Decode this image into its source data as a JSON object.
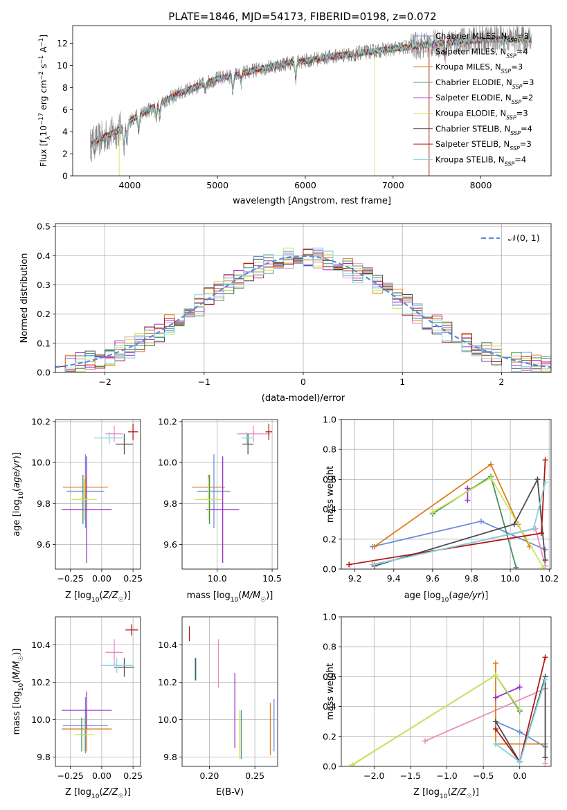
{
  "figure": {
    "title": "PLATE=1846, MJD=54173, FIBERID=0198, z=0.072"
  },
  "colors": {
    "Chabrier MILES": "#6a8edc",
    "Salpeter MILES": "#e58fc0",
    "Kroupa MILES": "#e07b1c",
    "Chabrier ELODIE": "#4a8f5f",
    "Salpeter ELODIE": "#9b2fc8",
    "Kroupa ELODIE": "#c8e85a",
    "Chabrier STELIB": "#4d4d4d",
    "Salpeter STELIB": "#b01818",
    "Kroupa STELIB": "#7fd6df",
    "data": "#808080",
    "normal": "#5b8ad6"
  },
  "chart_data": [
    {
      "id": "spectrum",
      "type": "line",
      "xlabel": "wavelength [Angstrom, rest frame]",
      "ylabel": "Flux [f_λ10^-17 erg cm^-2 s^-1 A^-1]",
      "xlim": [
        3350,
        8800
      ],
      "ylim": [
        0,
        13.6
      ],
      "xticks": [
        4000,
        5000,
        6000,
        7000,
        8000
      ],
      "yticks": [
        0,
        2,
        4,
        6,
        8,
        10,
        12
      ],
      "grid": false,
      "legend_position": "lower right",
      "legend": [
        {
          "model": "Chabrier MILES",
          "nssp": "3"
        },
        {
          "model": "Salpeter MILES",
          "nssp": "4"
        },
        {
          "model": "Kroupa MILES",
          "nssp": "3"
        },
        {
          "model": "Chabrier ELODIE",
          "nssp": "3"
        },
        {
          "model": "Salpeter ELODIE",
          "nssp": "2"
        },
        {
          "model": "Kroupa ELODIE",
          "nssp": "3"
        },
        {
          "model": "Chabrier STELIB",
          "nssp": "4"
        },
        {
          "model": "Salpeter STELIB",
          "nssp": "3"
        },
        {
          "model": "Kroupa STELIB",
          "nssp": "4"
        }
      ],
      "continuum": {
        "x": [
          3550,
          3700,
          3850,
          4000,
          4200,
          4400,
          4600,
          4800,
          5000,
          5200,
          5500,
          5800,
          6000,
          6300,
          6600,
          7000,
          7400,
          7800,
          8200,
          8600
        ],
        "y": [
          2.8,
          3.5,
          4.0,
          5.0,
          5.9,
          6.8,
          7.6,
          8.2,
          8.8,
          9.1,
          9.7,
          10.2,
          10.4,
          10.8,
          11.1,
          11.5,
          11.9,
          12.2,
          12.4,
          12.3
        ]
      }
    },
    {
      "id": "residuals",
      "type": "step",
      "xlabel": "(data-model)/error",
      "ylabel": "Normed distribution",
      "xlim": [
        -2.5,
        2.5
      ],
      "ylim": [
        0,
        0.51
      ],
      "xticks": [
        -2,
        -1,
        0,
        1,
        2
      ],
      "yticks": [
        0.0,
        0.1,
        0.2,
        0.3,
        0.4,
        0.5
      ],
      "grid": true,
      "legend_position": "upper right",
      "legend": "𝒩(0, 1)",
      "bin_width": 0.1
    },
    {
      "id": "age-vs-Z",
      "type": "errorbar",
      "xlabel": "Z [log10(Z/Z☉)]",
      "ylabel": "age [log10(age/yr)]",
      "xlim": [
        -0.37,
        0.31
      ],
      "ylim": [
        9.48,
        10.21
      ],
      "xticks": [
        -0.25,
        0.0,
        0.25
      ],
      "yticks": [
        9.6,
        9.8,
        10.0,
        10.2
      ],
      "grid": true,
      "points": [
        {
          "m": "Chabrier MILES",
          "x": -0.13,
          "xe": 0.15,
          "y": 9.86,
          "ye": 0.18
        },
        {
          "m": "Salpeter MILES",
          "x": 0.1,
          "xe": 0.07,
          "y": 10.14,
          "ye": 0.04
        },
        {
          "m": "Kroupa MILES",
          "x": -0.13,
          "xe": 0.18,
          "y": 9.88,
          "ye": 0.06
        },
        {
          "m": "Chabrier ELODIE",
          "x": -0.15,
          "xe": 0.04,
          "y": 9.82,
          "ye": 0.12
        },
        {
          "m": "Salpeter ELODIE",
          "x": -0.12,
          "xe": 0.2,
          "y": 9.77,
          "ye": 0.26
        },
        {
          "m": "Kroupa ELODIE",
          "x": -0.14,
          "xe": 0.1,
          "y": 9.82,
          "ye": 0.1
        },
        {
          "m": "Chabrier STELIB",
          "x": 0.18,
          "xe": 0.07,
          "y": 10.09,
          "ye": 0.05
        },
        {
          "m": "Salpeter STELIB",
          "x": 0.25,
          "xe": 0.04,
          "y": 10.15,
          "ye": 0.04
        },
        {
          "m": "Kroupa STELIB",
          "x": 0.06,
          "xe": 0.12,
          "y": 10.12,
          "ye": 0.03
        }
      ]
    },
    {
      "id": "age-vs-mass",
      "type": "errorbar",
      "xlabel": "mass [log10(M/M☉)]",
      "ylabel": "",
      "xlim": [
        9.68,
        10.55
      ],
      "ylim": [
        9.48,
        10.21
      ],
      "xticks": [
        10.0,
        10.5
      ],
      "yticks": [
        9.6,
        9.8,
        10.0,
        10.2
      ],
      "grid": true,
      "points": [
        {
          "m": "Chabrier MILES",
          "x": 9.97,
          "xe": 0.15,
          "y": 9.86,
          "ye": 0.18
        },
        {
          "m": "Salpeter MILES",
          "x": 10.33,
          "xe": 0.15,
          "y": 10.14,
          "ye": 0.04
        },
        {
          "m": "Kroupa MILES",
          "x": 9.92,
          "xe": 0.15,
          "y": 9.88,
          "ye": 0.06
        },
        {
          "m": "Chabrier ELODIE",
          "x": 9.93,
          "xe": 0.05,
          "y": 9.82,
          "ye": 0.12
        },
        {
          "m": "Salpeter ELODIE",
          "x": 10.05,
          "xe": 0.15,
          "y": 9.77,
          "ye": 0.26
        },
        {
          "m": "Kroupa ELODIE",
          "x": 9.92,
          "xe": 0.12,
          "y": 9.82,
          "ye": 0.1
        },
        {
          "m": "Chabrier STELIB",
          "x": 10.28,
          "xe": 0.05,
          "y": 10.09,
          "ye": 0.05
        },
        {
          "m": "Salpeter STELIB",
          "x": 10.47,
          "xe": 0.03,
          "y": 10.15,
          "ye": 0.04
        },
        {
          "m": "Kroupa STELIB",
          "x": 10.27,
          "xe": 0.05,
          "y": 10.12,
          "ye": 0.03
        }
      ]
    },
    {
      "id": "weight-vs-age",
      "type": "line",
      "xlabel": "age [log10(age/yr)]",
      "ylabel": "mass weight",
      "xlim": [
        9.13,
        10.21
      ],
      "ylim": [
        0,
        1
      ],
      "xticks": [
        9.2,
        9.4,
        9.6,
        9.8,
        10.0,
        10.2
      ],
      "yticks": [
        0.0,
        0.2,
        0.4,
        0.6,
        0.8,
        1.0
      ],
      "grid": true,
      "series": [
        {
          "m": "Chabrier MILES",
          "x": [
            9.29,
            9.85,
            10.18
          ],
          "y": [
            0.15,
            0.32,
            0.13
          ]
        },
        {
          "m": "Salpeter MILES",
          "x": [
            9.29,
            10.13,
            10.18
          ],
          "y": [
            0.03,
            0.27,
            0.02
          ]
        },
        {
          "m": "Kroupa MILES",
          "x": [
            9.3,
            9.9,
            10.04,
            10.1
          ],
          "y": [
            0.15,
            0.7,
            0.3,
            0.15
          ]
        },
        {
          "m": "Chabrier ELODIE",
          "x": [
            9.6,
            9.9,
            10.03
          ],
          "y": [
            0.37,
            0.62,
            0.01
          ]
        },
        {
          "m": "Salpeter ELODIE",
          "x": [
            9.78,
            9.78
          ],
          "y": [
            0.46,
            0.54
          ]
        },
        {
          "m": "Kroupa ELODIE",
          "x": [
            9.6,
            9.9,
            10.17
          ],
          "y": [
            0.38,
            0.61,
            0.01
          ]
        },
        {
          "m": "Chabrier STELIB",
          "x": [
            9.3,
            10.02,
            10.14,
            10.18
          ],
          "y": [
            0.02,
            0.3,
            0.6,
            0.06
          ]
        },
        {
          "m": "Salpeter STELIB",
          "x": [
            9.17,
            10.16,
            10.18
          ],
          "y": [
            0.03,
            0.24,
            0.73
          ]
        },
        {
          "m": "Kroupa STELIB",
          "x": [
            9.3,
            10.12,
            10.18
          ],
          "y": [
            0.03,
            0.27,
            0.58
          ]
        }
      ]
    },
    {
      "id": "mass-vs-Z",
      "type": "errorbar",
      "xlabel": "Z [log10(Z/Z☉)]",
      "ylabel": "mass [log10(M/M☉)]",
      "xlim": [
        -0.37,
        0.31
      ],
      "ylim": [
        9.75,
        10.55
      ],
      "xticks": [
        -0.25,
        0.0,
        0.25
      ],
      "yticks": [
        9.8,
        10.0,
        10.2,
        10.4
      ],
      "grid": true,
      "points": [
        {
          "m": "Chabrier MILES",
          "x": -0.13,
          "xe": 0.18,
          "y": 9.97,
          "ye": 0.15
        },
        {
          "m": "Salpeter MILES",
          "x": 0.1,
          "xe": 0.07,
          "y": 10.36,
          "ye": 0.07
        },
        {
          "m": "Kroupa MILES",
          "x": -0.12,
          "xe": 0.2,
          "y": 9.95,
          "ye": 0.12
        },
        {
          "m": "Chabrier ELODIE",
          "x": -0.16,
          "xe": 0.03,
          "y": 9.92,
          "ye": 0.09
        },
        {
          "m": "Salpeter ELODIE",
          "x": -0.12,
          "xe": 0.2,
          "y": 10.05,
          "ye": 0.1
        },
        {
          "m": "Kroupa ELODIE",
          "x": -0.14,
          "xe": 0.08,
          "y": 9.92,
          "ye": 0.09
        },
        {
          "m": "Chabrier STELIB",
          "x": 0.18,
          "xe": 0.08,
          "y": 10.28,
          "ye": 0.05
        },
        {
          "m": "Salpeter STELIB",
          "x": 0.24,
          "xe": 0.05,
          "y": 10.48,
          "ye": 0.03
        },
        {
          "m": "Kroupa STELIB",
          "x": 0.12,
          "xe": 0.13,
          "y": 10.29,
          "ye": 0.04
        }
      ]
    },
    {
      "id": "mass-vs-ebv",
      "type": "errorbar",
      "xlabel": "E(B-V)",
      "ylabel": "",
      "xlim": [
        0.17,
        0.275
      ],
      "ylim": [
        9.75,
        10.55
      ],
      "xticks": [
        0.2,
        0.25
      ],
      "yticks": [
        9.8,
        10.0,
        10.2,
        10.4
      ],
      "grid": true,
      "points": [
        {
          "m": "Chabrier MILES",
          "x": 0.271,
          "xe": 0,
          "y": 9.97,
          "ye": 0.14
        },
        {
          "m": "Salpeter MILES",
          "x": 0.21,
          "xe": 0,
          "y": 10.3,
          "ye": 0.13
        },
        {
          "m": "Kroupa MILES",
          "x": 0.267,
          "xe": 0,
          "y": 9.95,
          "ye": 0.14
        },
        {
          "m": "Chabrier ELODIE",
          "x": 0.235,
          "xe": 0,
          "y": 9.92,
          "ye": 0.13
        },
        {
          "m": "Salpeter ELODIE",
          "x": 0.228,
          "xe": 0,
          "y": 10.05,
          "ye": 0.2
        },
        {
          "m": "Kroupa ELODIE",
          "x": 0.233,
          "xe": 0,
          "y": 9.92,
          "ye": 0.13
        },
        {
          "m": "Chabrier STELIB",
          "x": 0.185,
          "xe": 0,
          "y": 10.27,
          "ye": 0.06
        },
        {
          "m": "Salpeter STELIB",
          "x": 0.178,
          "xe": 0,
          "y": 10.46,
          "ye": 0.04
        },
        {
          "m": "Kroupa STELIB",
          "x": 0.184,
          "xe": 0,
          "y": 10.27,
          "ye": 0.06
        }
      ]
    },
    {
      "id": "weight-vs-Z",
      "type": "line",
      "xlabel": "Z [log10(Z/Z☉)]",
      "ylabel": "mass weight",
      "xlim": [
        -2.45,
        0.43
      ],
      "ylim": [
        0,
        1
      ],
      "xticks": [
        -2.0,
        -1.5,
        -1.0,
        -0.5,
        0.0
      ],
      "yticks": [
        0.0,
        0.2,
        0.4,
        0.6,
        0.8,
        1.0
      ],
      "grid": true,
      "series": [
        {
          "m": "Chabrier MILES",
          "x": [
            -0.33,
            0.0,
            0.35
          ],
          "y": [
            0.3,
            0.23,
            0.13
          ]
        },
        {
          "m": "Salpeter MILES",
          "x": [
            -1.3,
            0.35,
            0.35
          ],
          "y": [
            0.17,
            0.52,
            0.02
          ]
        },
        {
          "m": "Kroupa MILES",
          "x": [
            -0.33,
            -0.33,
            0.35
          ],
          "y": [
            0.69,
            0.15,
            0.15
          ]
        },
        {
          "m": "Chabrier ELODIE",
          "x": [
            -2.3,
            -0.33,
            0.0
          ],
          "y": [
            0.01,
            0.61,
            0.37
          ]
        },
        {
          "m": "Salpeter ELODIE",
          "x": [
            -0.33,
            0.0
          ],
          "y": [
            0.46,
            0.53
          ]
        },
        {
          "m": "Kroupa ELODIE",
          "x": [
            -2.3,
            -0.33,
            0.0
          ],
          "y": [
            0.01,
            0.61,
            0.38
          ]
        },
        {
          "m": "Chabrier STELIB",
          "x": [
            -0.33,
            0.0,
            0.35,
            0.35
          ],
          "y": [
            0.3,
            0.03,
            0.6,
            0.06
          ]
        },
        {
          "m": "Salpeter STELIB",
          "x": [
            -0.33,
            0.0,
            0.35
          ],
          "y": [
            0.25,
            0.03,
            0.73
          ]
        },
        {
          "m": "Kroupa STELIB",
          "x": [
            -0.33,
            0.0,
            0.35
          ],
          "y": [
            0.15,
            0.03,
            0.58
          ]
        }
      ]
    }
  ]
}
